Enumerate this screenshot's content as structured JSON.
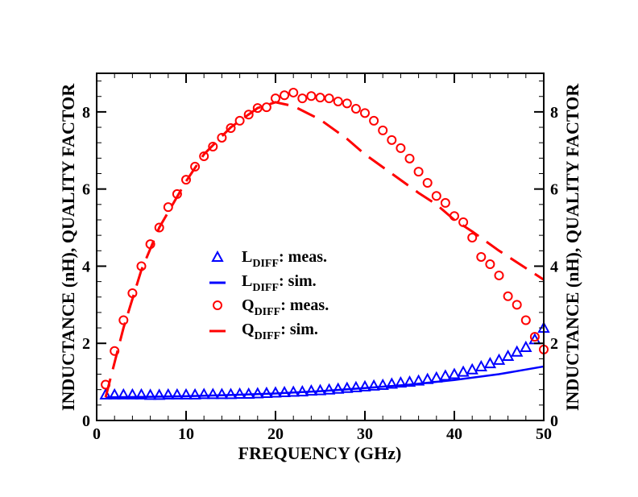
{
  "chart_data": {
    "type": "line",
    "title": "",
    "xlabel": "FREQUENCY (GHz)",
    "ylabel": "INDUCTANCE (nH), QUALITY FACTOR",
    "ylabel_right": "INDUCTANCE (nH), QUALITY FACTOR",
    "xlim": [
      0,
      50
    ],
    "ylim": [
      0,
      9
    ],
    "xticks": [
      0,
      10,
      20,
      30,
      40,
      50
    ],
    "yticks": [
      0,
      2,
      4,
      6,
      8
    ],
    "grid": false,
    "legend_position": "center-left",
    "series": [
      {
        "name": "L_DIFF: meas.",
        "name_main": "L",
        "name_sub": "DIFF",
        "name_suffix": ": meas.",
        "style": "triangle-markers",
        "color": "#0000ff",
        "x": [
          1,
          2,
          3,
          4,
          5,
          6,
          7,
          8,
          9,
          10,
          11,
          12,
          13,
          14,
          15,
          16,
          17,
          18,
          19,
          20,
          21,
          22,
          23,
          24,
          25,
          26,
          27,
          28,
          29,
          30,
          31,
          32,
          33,
          34,
          35,
          36,
          37,
          38,
          39,
          40,
          41,
          42,
          43,
          44,
          45,
          46,
          47,
          48,
          49,
          50
        ],
        "y": [
          0.67,
          0.67,
          0.67,
          0.67,
          0.67,
          0.66,
          0.66,
          0.67,
          0.67,
          0.67,
          0.67,
          0.68,
          0.68,
          0.68,
          0.68,
          0.69,
          0.69,
          0.7,
          0.71,
          0.72,
          0.73,
          0.74,
          0.75,
          0.77,
          0.78,
          0.8,
          0.82,
          0.84,
          0.86,
          0.88,
          0.9,
          0.92,
          0.95,
          0.98,
          1.0,
          1.03,
          1.07,
          1.11,
          1.16,
          1.2,
          1.26,
          1.32,
          1.4,
          1.48,
          1.57,
          1.67,
          1.78,
          1.9,
          2.1,
          2.4
        ]
      },
      {
        "name": "L_DIFF: sim.",
        "name_main": "L",
        "name_sub": "DIFF",
        "name_suffix": ": sim.",
        "style": "solid",
        "color": "#0000ff",
        "x": [
          1,
          5,
          10,
          15,
          20,
          25,
          30,
          35,
          40,
          45,
          50
        ],
        "y": [
          0.6,
          0.61,
          0.63,
          0.66,
          0.7,
          0.76,
          0.84,
          0.93,
          1.05,
          1.2,
          1.4
        ]
      },
      {
        "name": "Q_DIFF: meas.",
        "name_main": "Q",
        "name_sub": "DIFF",
        "name_suffix": ": meas.",
        "style": "circle-markers",
        "color": "#ff0000",
        "x": [
          1,
          2,
          3,
          4,
          5,
          6,
          7,
          8,
          9,
          10,
          11,
          12,
          13,
          14,
          15,
          16,
          17,
          18,
          19,
          20,
          21,
          22,
          23,
          24,
          25,
          26,
          27,
          28,
          29,
          30,
          31,
          32,
          33,
          34,
          35,
          36,
          37,
          38,
          39,
          40,
          41,
          42,
          43,
          44,
          45,
          46,
          47,
          48,
          49,
          50
        ],
        "y": [
          0.93,
          1.8,
          2.6,
          3.3,
          4.0,
          4.57,
          5.0,
          5.53,
          5.87,
          6.24,
          6.58,
          6.85,
          7.1,
          7.33,
          7.58,
          7.77,
          7.93,
          8.1,
          8.12,
          8.35,
          8.43,
          8.5,
          8.35,
          8.41,
          8.37,
          8.35,
          8.27,
          8.22,
          8.08,
          7.97,
          7.77,
          7.52,
          7.27,
          7.06,
          6.79,
          6.45,
          6.16,
          5.82,
          5.64,
          5.3,
          5.14,
          4.74,
          4.24,
          4.05,
          3.76,
          3.22,
          3.0,
          2.6,
          2.17,
          1.84
        ]
      },
      {
        "name": "Q_DIFF: sim.",
        "name_main": "Q",
        "name_sub": "DIFF",
        "name_suffix": ": sim.",
        "style": "dashed",
        "color": "#ff0000",
        "x": [
          1,
          2,
          3,
          5,
          7,
          10,
          12,
          15,
          18,
          20,
          22,
          25,
          28,
          30,
          33,
          36,
          38,
          40,
          42,
          45,
          48,
          50
        ],
        "y": [
          0.6,
          1.5,
          2.4,
          3.9,
          5.0,
          6.2,
          6.9,
          7.6,
          8.1,
          8.25,
          8.15,
          7.8,
          7.3,
          6.9,
          6.4,
          5.9,
          5.6,
          5.2,
          4.9,
          4.4,
          3.95,
          3.65
        ]
      }
    ]
  }
}
